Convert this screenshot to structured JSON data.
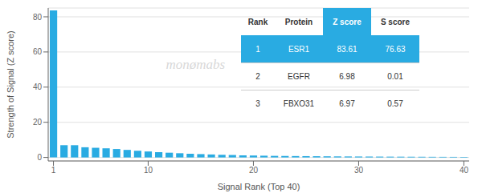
{
  "chart_data": {
    "type": "bar",
    "xlabel": "Signal Rank (Top 40)",
    "ylabel": "Strength of Signal (Z score)",
    "x": [
      1,
      2,
      3,
      4,
      5,
      6,
      7,
      8,
      9,
      10,
      11,
      12,
      13,
      14,
      15,
      16,
      17,
      18,
      19,
      20,
      21,
      22,
      23,
      24,
      25,
      26,
      27,
      28,
      29,
      30,
      31,
      32,
      33,
      34,
      35,
      36,
      37,
      38,
      39,
      40
    ],
    "values": [
      83.61,
      6.98,
      6.97,
      5.8,
      5.5,
      5.2,
      4.8,
      4.3,
      3.8,
      3.4,
      3.0,
      2.7,
      2.4,
      2.1,
      1.9,
      1.7,
      1.5,
      1.4,
      1.2,
      1.1,
      1.0,
      0.9,
      0.85,
      0.8,
      0.75,
      0.7,
      0.65,
      0.6,
      0.57,
      0.54,
      0.51,
      0.48,
      0.45,
      0.43,
      0.4,
      0.38,
      0.35,
      0.33,
      0.31,
      0.29
    ],
    "color": "#29ABE2",
    "xlim": [
      0.5,
      40.5
    ],
    "xticks": [
      1,
      10,
      20,
      30,
      40
    ],
    "ylim": [
      -2,
      85
    ],
    "yticks": [
      0,
      20,
      40,
      60,
      80
    ],
    "grid": true,
    "annotations": [
      {
        "text": "monømabs"
      }
    ],
    "table": [
      [
        "Rank",
        "Protein",
        "Z score",
        "S score"
      ],
      [
        "1",
        "ESR1",
        "83.61",
        "76.63"
      ],
      [
        "2",
        "EGFR",
        "6.98",
        "0.01"
      ],
      [
        "3",
        "FBXO31",
        "6.97",
        "0.57"
      ]
    ]
  }
}
